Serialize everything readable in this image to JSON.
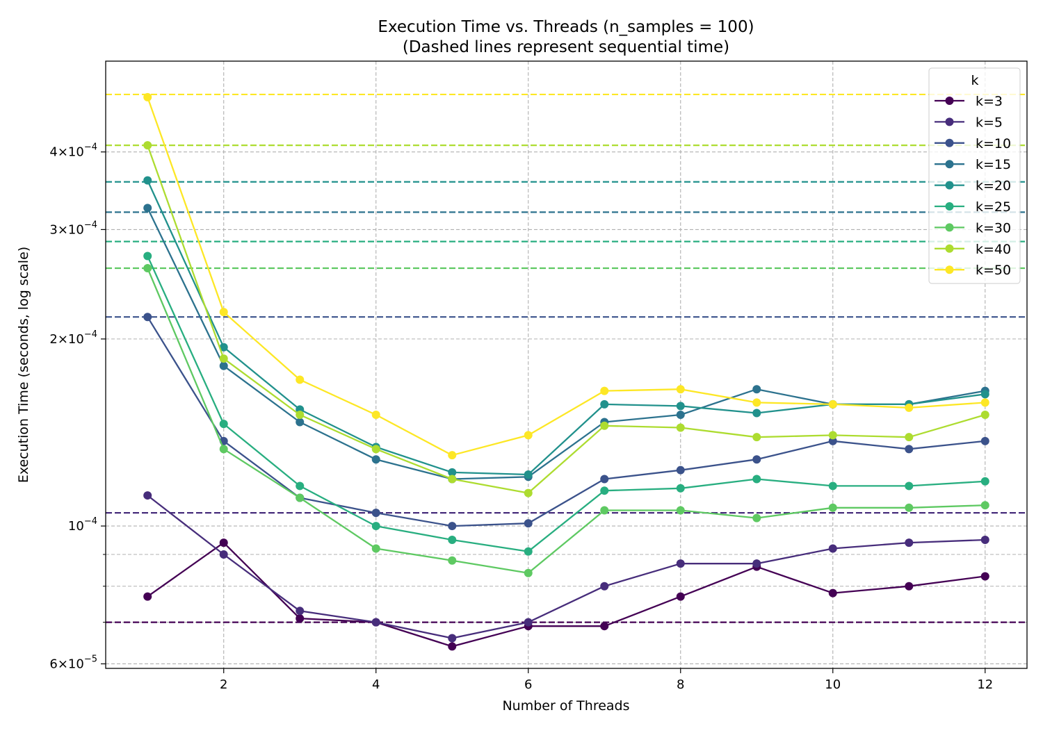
{
  "chart_data": {
    "type": "line",
    "title": "Execution Time vs. Threads (n_samples = 100)",
    "subtitle": "(Dashed lines represent sequential time)",
    "xlabel": "Number of Threads",
    "ylabel": "Execution Time (seconds, log scale)",
    "y_scale": "log",
    "xlim": [
      0.45,
      12.55
    ],
    "ylim": [
      5.9e-05,
      0.00056
    ],
    "x_ticks": [
      2,
      4,
      6,
      8,
      10,
      12
    ],
    "x_tick_labels": [
      "2",
      "4",
      "6",
      "8",
      "10",
      "12"
    ],
    "y_major_ticks": [
      6e-05,
      0.0001,
      0.0002,
      0.0003,
      0.0004
    ],
    "y_major_tick_mantissas": [
      "6",
      "",
      "2",
      "3",
      "4"
    ],
    "y_minor_ticks": [
      7e-05,
      8e-05,
      9e-05
    ],
    "y_tick_base": "10",
    "y_tick_exponents": [
      "−5",
      "−4",
      "−4",
      "−4",
      "−4"
    ],
    "grid": true,
    "legend_title": "k",
    "legend_position": "upper right",
    "x": [
      1,
      2,
      3,
      4,
      5,
      6,
      7,
      8,
      9,
      10,
      11,
      12
    ],
    "series": [
      {
        "name": "k=3",
        "color": "#440154",
        "sequential": 7e-05,
        "values": [
          7.7e-05,
          9.4e-05,
          7.1e-05,
          7e-05,
          6.4e-05,
          6.9e-05,
          6.9e-05,
          7.7e-05,
          8.6e-05,
          7.8e-05,
          8e-05,
          8.3e-05
        ]
      },
      {
        "name": "k=5",
        "color": "#472d7b",
        "sequential": 0.000105,
        "values": [
          0.000112,
          9e-05,
          7.3e-05,
          7e-05,
          6.6e-05,
          7e-05,
          8e-05,
          8.7e-05,
          8.7e-05,
          9.2e-05,
          9.4e-05,
          9.5e-05
        ]
      },
      {
        "name": "k=10",
        "color": "#3b528b",
        "sequential": 0.000217,
        "values": [
          0.000217,
          0.000137,
          0.000111,
          0.000105,
          0.0001,
          0.000101,
          0.000119,
          0.000123,
          0.000128,
          0.000137,
          0.000133,
          0.000137
        ]
      },
      {
        "name": "k=15",
        "color": "#2c728e",
        "sequential": 0.00032,
        "values": [
          0.000325,
          0.000181,
          0.000147,
          0.000128,
          0.000119,
          0.00012,
          0.000147,
          0.000151,
          0.000166,
          0.000157,
          0.000157,
          0.000165
        ]
      },
      {
        "name": "k=20",
        "color": "#21918c",
        "sequential": 0.000358,
        "values": [
          0.00036,
          0.000194,
          0.000154,
          0.000134,
          0.000122,
          0.000121,
          0.000157,
          0.000156,
          0.000152,
          0.000157,
          0.000157,
          0.000163
        ]
      },
      {
        "name": "k=25",
        "color": "#28ae80",
        "sequential": 0.000287,
        "values": [
          0.000272,
          0.000146,
          0.000116,
          0.0001,
          9.5e-05,
          9.1e-05,
          0.000114,
          0.000115,
          0.000119,
          0.000116,
          0.000116,
          0.000118
        ]
      },
      {
        "name": "k=30",
        "color": "#5ec962",
        "sequential": 0.00026,
        "values": [
          0.00026,
          0.000133,
          0.000111,
          9.2e-05,
          8.8e-05,
          8.4e-05,
          0.000106,
          0.000106,
          0.000103,
          0.000107,
          0.000107,
          0.000108
        ]
      },
      {
        "name": "k=40",
        "color": "#addc30",
        "sequential": 0.00041,
        "values": [
          0.00041,
          0.000186,
          0.000151,
          0.000133,
          0.000119,
          0.000113,
          0.000145,
          0.000144,
          0.000139,
          0.00014,
          0.000139,
          0.000151
        ]
      },
      {
        "name": "k=50",
        "color": "#fde725",
        "sequential": 0.000495,
        "values": [
          0.00049,
          0.000221,
          0.000172,
          0.000151,
          0.00013,
          0.00014,
          0.000165,
          0.000166,
          0.000158,
          0.000157,
          0.000155,
          0.000158
        ]
      }
    ]
  }
}
